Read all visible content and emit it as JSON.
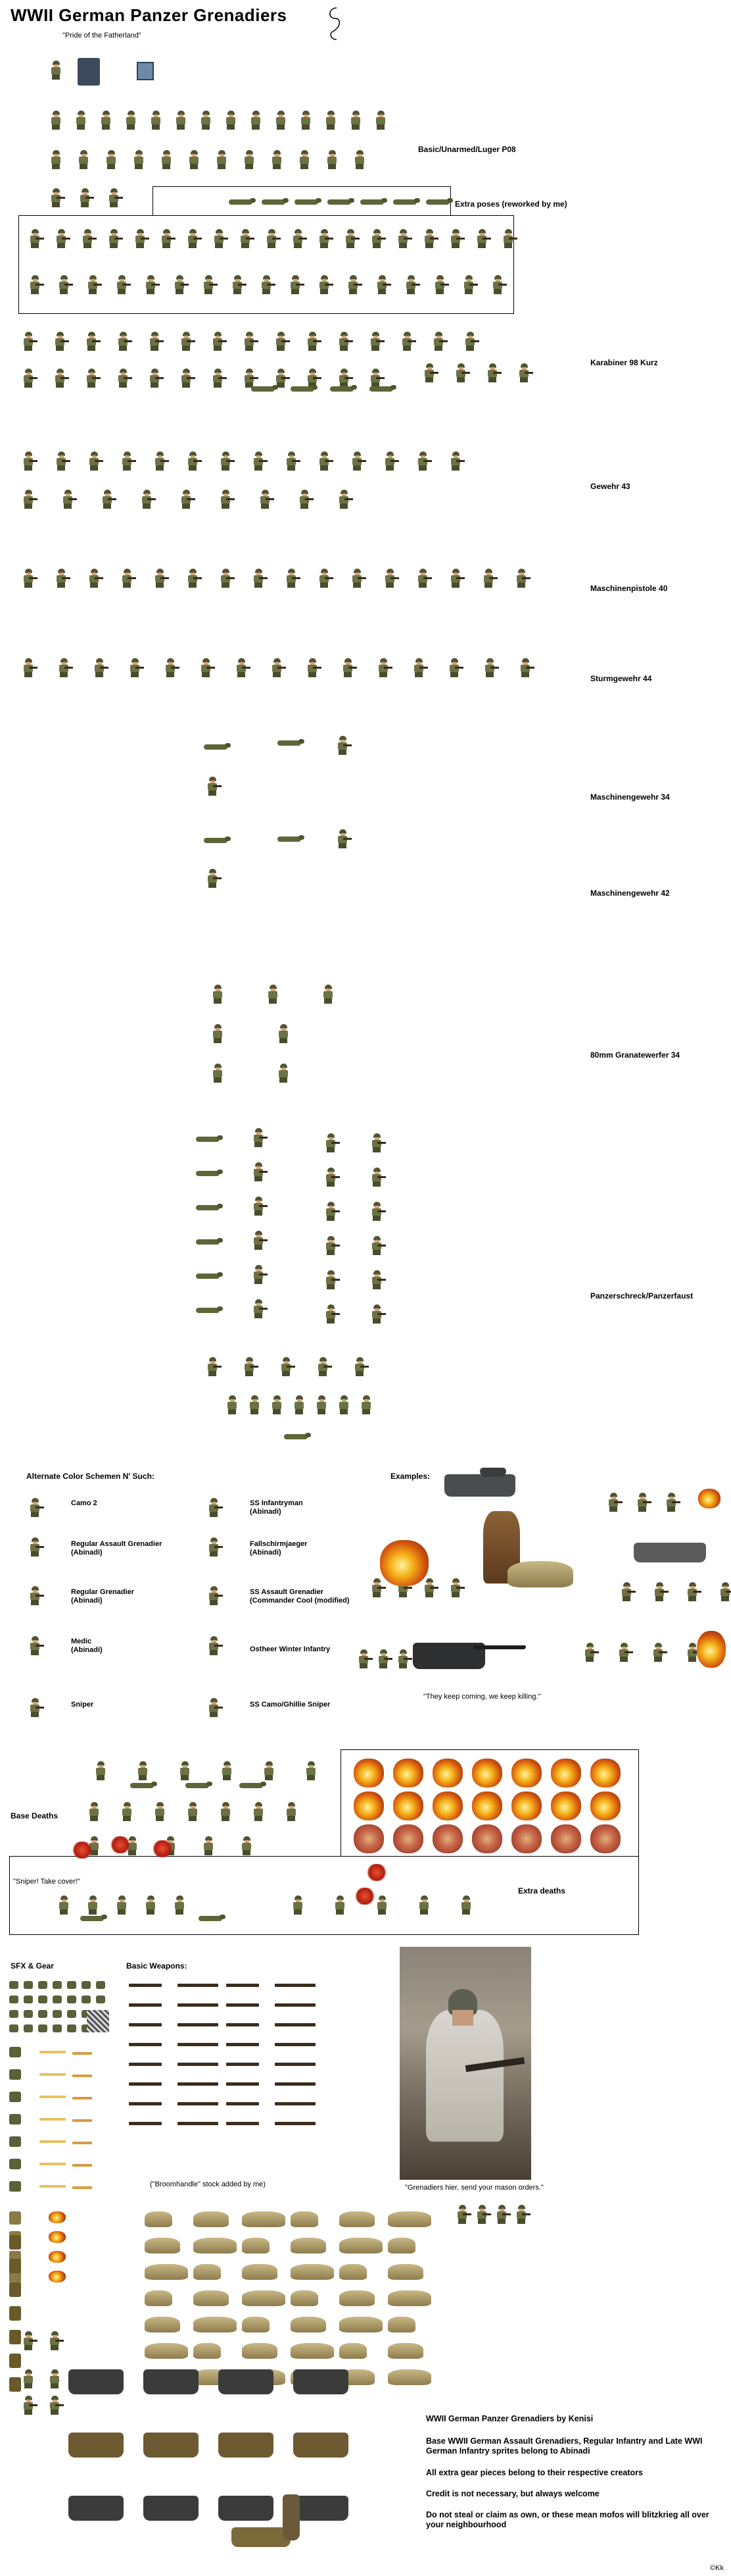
{
  "header": {
    "title": "WWII German Panzer Grenadiers",
    "subtitle": "\"Pride of the Fatherland\""
  },
  "sections": {
    "basic": "Basic/Unarmed/Luger P08",
    "extra_poses": "Extra poses (reworked by me)",
    "karabiner": "Karabiner 98 Kurz",
    "gewehr": "Gewehr 43",
    "mp40": "Maschinenpistole 40",
    "stg44": "Sturmgewehr 44",
    "mg34": "Maschinengewehr 34",
    "mg42": "Maschinengewehr 42",
    "mortar": "80mm Granatewerfer 34",
    "panzerschreck": "Panzerschreck/Panzerfaust"
  },
  "alternates": {
    "heading": "Alternate Color Schemen N' Such:",
    "left": [
      {
        "line1": "Camo 2",
        "line2": ""
      },
      {
        "line1": "Regular Assault Grenadier",
        "line2": "(Abinadi)"
      },
      {
        "line1": "Regular Grenadier",
        "line2": "(Abinadi)"
      },
      {
        "line1": "Medic",
        "line2": "(Abinadi)"
      },
      {
        "line1": "Sniper",
        "line2": ""
      }
    ],
    "right": [
      {
        "line1": "SS Infantryman",
        "line2": "(Abinadi)"
      },
      {
        "line1": "Fallschirmjaeger",
        "line2": "(Abinadi)"
      },
      {
        "line1": "SS Assault Grenadier",
        "line2": "(Commander Cool (modified)"
      },
      {
        "line1": "Ostheer Winter Infantry",
        "line2": ""
      },
      {
        "line1": "SS Camo/Ghillie Sniper",
        "line2": ""
      }
    ]
  },
  "examples": {
    "heading": "Examples:",
    "caption": "\"They keep coming, we keep killing.\""
  },
  "deaths": {
    "base": "Base Deaths",
    "extra": "Extra deaths",
    "sniper_quote": "\"Sniper! Take cover!\""
  },
  "gear": {
    "sfx_heading": "SFX & Gear",
    "weapons_heading": "Basic Weapons:",
    "broomhandle": "(\"Broomhandle\" stock added by me)",
    "photo_caption": "\"Grenadiers hier, send your mason orders.\""
  },
  "credits": {
    "line1": "WWII German Panzer Grenadiers by Kenisi",
    "line2": "Base WWII German Assault Grenadiers, Regular Infantry and Late WWI German Infantry sprites belong to Abinadi",
    "line3": "All extra gear pieces belong to their respective creators",
    "line4": "Credit is not necessary, but always welcome",
    "line5": "Do not steal or claim as own, or these mean mofos will blitzkrieg all over your neighbourhood",
    "mark": "©Kk"
  },
  "colors": {
    "uniform": "#6c7244",
    "helmet": "#4f5530",
    "fire": "#f6b21a",
    "sandbag": "#c9b886"
  }
}
